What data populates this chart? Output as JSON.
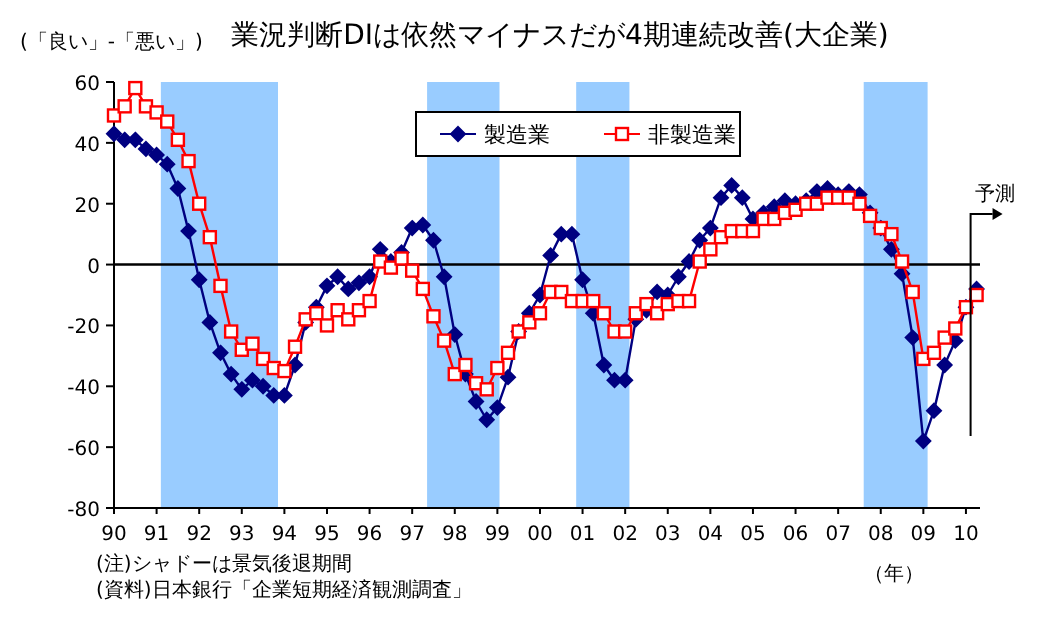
{
  "chart_data": {
    "type": "line",
    "title": "業況判断DIは依然マイナスだが4期連続改善(大企業)",
    "ylabel": "(「良い」-「悪い」)",
    "xlabel": "（年）",
    "annotations": [
      "(注)シャドーは景気後退期間",
      "(資料)日本銀行「企業短期経済観測調査」",
      "予測"
    ],
    "x": [
      1990,
      1990.25,
      1990.5,
      1990.75,
      1991,
      1991.25,
      1991.5,
      1991.75,
      1992,
      1992.25,
      1992.5,
      1992.75,
      1993,
      1993.25,
      1993.5,
      1993.75,
      1994,
      1994.25,
      1994.5,
      1994.75,
      1995,
      1995.25,
      1995.5,
      1995.75,
      1996,
      1996.25,
      1996.5,
      1996.75,
      1997,
      1997.25,
      1997.5,
      1997.75,
      1998,
      1998.25,
      1998.5,
      1998.75,
      1999,
      1999.25,
      1999.5,
      1999.75,
      2000,
      2000.25,
      2000.5,
      2000.75,
      2001,
      2001.25,
      2001.5,
      2001.75,
      2002,
      2002.25,
      2002.5,
      2002.75,
      2003,
      2003.25,
      2003.5,
      2003.75,
      2004,
      2004.25,
      2004.5,
      2004.75,
      2005,
      2005.25,
      2005.5,
      2005.75,
      2006,
      2006.25,
      2006.5,
      2006.75,
      2007,
      2007.25,
      2007.5,
      2007.75,
      2008,
      2008.25,
      2008.5,
      2008.75,
      2009,
      2009.25,
      2009.5,
      2009.75,
      2010,
      2010.25
    ],
    "series": [
      {
        "name": "製造業",
        "color": "#000080",
        "marker": "diamond",
        "values": [
          43,
          41,
          41,
          38,
          36,
          33,
          25,
          11,
          -5,
          -19,
          -29,
          -36,
          -41,
          -38,
          -40,
          -43,
          -43,
          -33,
          -19,
          -14,
          -7,
          -4,
          -8,
          -6,
          -4,
          5,
          1,
          4,
          12,
          13,
          8,
          -4,
          -23,
          -36,
          -45,
          -51,
          -47,
          -37,
          -22,
          -16,
          -10,
          3,
          10,
          10,
          -5,
          -16,
          -33,
          -38,
          -38,
          -18,
          -15,
          -9,
          -10,
          -4,
          1,
          8,
          12,
          22,
          26,
          22,
          15,
          17,
          19,
          21,
          20,
          21,
          24,
          25,
          23,
          24,
          23,
          17,
          12,
          5,
          -3,
          -24,
          -58,
          -48,
          -33,
          -25,
          -14,
          -8
        ]
      },
      {
        "name": "非製造業",
        "color": "#ff0000",
        "marker": "square",
        "values": [
          49,
          52,
          58,
          52,
          50,
          47,
          41,
          34,
          20,
          9,
          -7,
          -22,
          -28,
          -26,
          -31,
          -34,
          -35,
          -27,
          -18,
          -16,
          -20,
          -15,
          -18,
          -15,
          -12,
          1,
          -1,
          2,
          -2,
          -8,
          -17,
          -25,
          -36,
          -33,
          -39,
          -41,
          -34,
          -29,
          -22,
          -19,
          -16,
          -9,
          -9,
          -12,
          -12,
          -12,
          -16,
          -22,
          -22,
          -16,
          -13,
          -16,
          -13,
          -12,
          -12,
          1,
          5,
          9,
          11,
          11,
          11,
          15,
          15,
          17,
          18,
          20,
          20,
          22,
          22,
          22,
          20,
          16,
          12,
          10,
          1,
          -9,
          -31,
          -29,
          -24,
          -21,
          -14,
          -10
        ]
      }
    ],
    "xlim": [
      1990,
      2010.33
    ],
    "xticks": [
      {
        "value": 1990,
        "label": "90"
      },
      {
        "value": 1991,
        "label": "91"
      },
      {
        "value": 1992,
        "label": "92"
      },
      {
        "value": 1993,
        "label": "93"
      },
      {
        "value": 1994,
        "label": "94"
      },
      {
        "value": 1995,
        "label": "95"
      },
      {
        "value": 1996,
        "label": "96"
      },
      {
        "value": 1997,
        "label": "97"
      },
      {
        "value": 1998,
        "label": "98"
      },
      {
        "value": 1999,
        "label": "99"
      },
      {
        "value": 2000,
        "label": "00"
      },
      {
        "value": 2001,
        "label": "01"
      },
      {
        "value": 2002,
        "label": "02"
      },
      {
        "value": 2003,
        "label": "03"
      },
      {
        "value": 2004,
        "label": "04"
      },
      {
        "value": 2005,
        "label": "05"
      },
      {
        "value": 2006,
        "label": "06"
      },
      {
        "value": 2007,
        "label": "07"
      },
      {
        "value": 2008,
        "label": "08"
      },
      {
        "value": 2009,
        "label": "09"
      },
      {
        "value": 2010,
        "label": "10"
      }
    ],
    "ylim": [
      -80,
      60
    ],
    "yticks": [
      -80,
      -60,
      -40,
      -20,
      0,
      20,
      40,
      60
    ],
    "grid": false,
    "legend": "top",
    "ref_lines": [
      {
        "axis": "y",
        "value": 0,
        "color": "#000000"
      }
    ],
    "bands": [
      {
        "axis": "x",
        "from": 1991.1,
        "to": 1993.85,
        "color": "#99ccff"
      },
      {
        "axis": "x",
        "from": 1997.35,
        "to": 1999.05,
        "color": "#99ccff"
      },
      {
        "axis": "x",
        "from": 2000.85,
        "to": 2002.1,
        "color": "#99ccff"
      },
      {
        "axis": "x",
        "from": 2007.6,
        "to": 2009.1,
        "color": "#99ccff"
      }
    ]
  }
}
